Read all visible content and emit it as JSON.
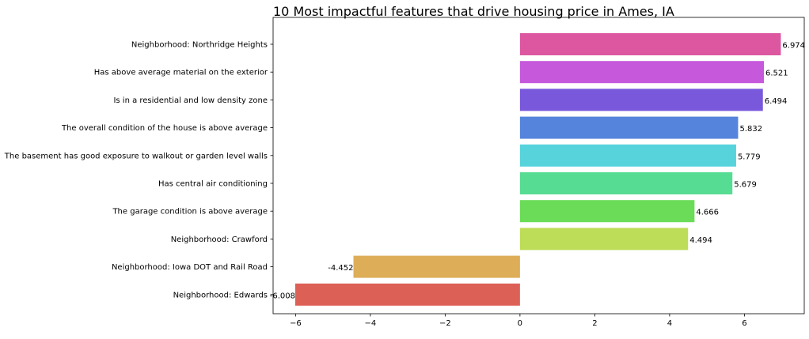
{
  "chart_data": {
    "type": "bar",
    "orientation": "horizontal",
    "title": "10 Most impactful features that drive housing price in Ames, IA",
    "xlabel": "",
    "ylabel": "",
    "xlim": [
      -6.6,
      7.6
    ],
    "xticks": [
      -6,
      -4,
      -2,
      0,
      2,
      4,
      6
    ],
    "xtick_labels": [
      "−6",
      "−4",
      "−2",
      "0",
      "2",
      "4",
      "6"
    ],
    "grid": false,
    "legend": "none",
    "categories": [
      "Neighborhood: Northridge Heights",
      "Has above average material on the exterior",
      "Is in a residential and low density zone",
      "The overall condition of the house is above average",
      "The basement has good exposure to walkout or garden level walls",
      "Has central air conditioning",
      "The garage condition is above average",
      "Neighborhood: Crawford",
      "Neighborhood: Iowa DOT and Rail Road",
      "Neighborhood: Edwards"
    ],
    "values": [
      6.974,
      6.521,
      6.494,
      5.832,
      5.779,
      5.679,
      4.666,
      4.494,
      -4.452,
      -6.008
    ],
    "value_labels": [
      "6.974",
      "6.521",
      "6.494",
      "5.832",
      "5.779",
      "5.679",
      "4.666",
      "4.494",
      "-4.452",
      "-6.008"
    ],
    "colors": [
      "#dc579f",
      "#c658dc",
      "#7958dc",
      "#5584dc",
      "#57d3dc",
      "#57dc93",
      "#6bdc58",
      "#bddd58",
      "#ddad57",
      "#dd6057"
    ]
  }
}
